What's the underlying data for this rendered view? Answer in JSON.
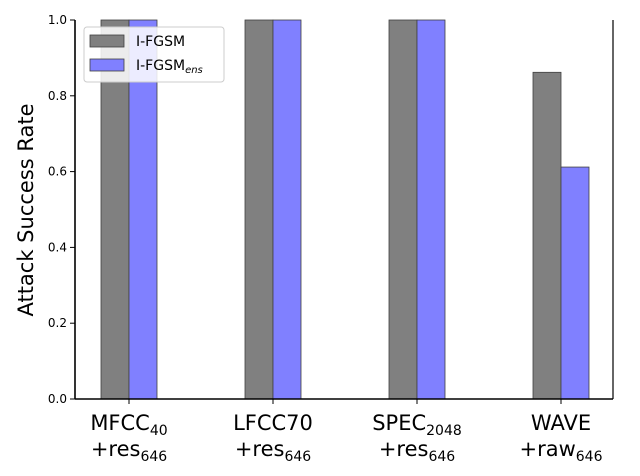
{
  "chart_data": {
    "type": "bar",
    "title": "",
    "xlabel": "",
    "ylabel": "Attack Success Rate",
    "ylim": [
      0,
      1.0
    ],
    "yticks": [
      "0.0",
      "0.2",
      "0.4",
      "0.6",
      "0.8",
      "1.0"
    ],
    "categories": [
      {
        "main": "MFCC",
        "main_sub": "40",
        "second": "+res",
        "second_sub": "646"
      },
      {
        "main": "LFCC70",
        "main_sub": "",
        "second": "+res",
        "second_sub": "646"
      },
      {
        "main": "SPEC",
        "main_sub": "2048",
        "second": "+res",
        "second_sub": "646"
      },
      {
        "main": "WAVE",
        "main_sub": "",
        "second": "+raw",
        "second_sub": "646"
      }
    ],
    "series": [
      {
        "name": "I-FGSM",
        "name_sub": "",
        "color": "#808080",
        "values": [
          1.0,
          1.0,
          1.0,
          0.862
        ]
      },
      {
        "name": "I-FGSM",
        "name_sub": "ens",
        "color": "#8080ff",
        "values": [
          1.0,
          1.0,
          1.0,
          0.612
        ]
      }
    ],
    "legend_position": "top-left",
    "grid": false
  }
}
